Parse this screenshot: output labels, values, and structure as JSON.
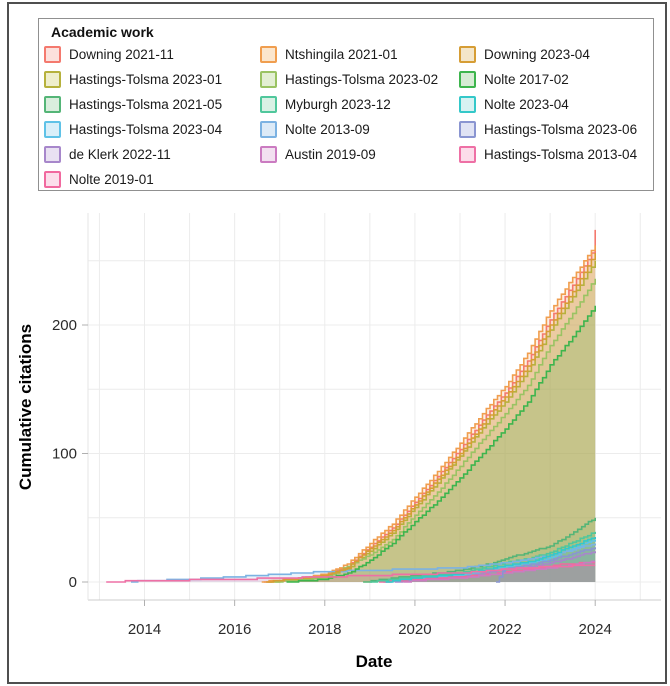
{
  "figure": {
    "background": "#ffffff",
    "border_color": "#4f4f4f"
  },
  "legend": {
    "title": "Academic work"
  },
  "chart_data": {
    "type": "area",
    "title": "",
    "xlabel": "Date",
    "ylabel": "Cumulative citations",
    "x_tick_labels": [
      "2014",
      "2016",
      "2018",
      "2020",
      "2022",
      "2024"
    ],
    "x_tick_years": [
      2014,
      2016,
      2018,
      2020,
      2022,
      2024
    ],
    "y_tick_values": [
      0,
      100,
      200
    ],
    "x_gridline_years": [
      2013,
      2014,
      2015,
      2016,
      2017,
      2018,
      2019,
      2020,
      2021,
      2022,
      2023,
      2024,
      2025
    ],
    "y_gridline_values": [
      0,
      50,
      100,
      150,
      200,
      250
    ],
    "xlim": [
      2012.75,
      2025.45
    ],
    "ylim": [
      -12,
      287
    ],
    "grid": "on",
    "gridline_color": "#ececec",
    "axis_line_color": "#cccccc",
    "tick_color": "#b0b0b0",
    "legend_position": "top",
    "series": [
      {
        "name": "Downing 2021-11",
        "color": "#f4796e",
        "fill": "#fce1dd",
        "legend_column": 0,
        "points": [
          [
            2016.65,
            0
          ],
          [
            2017.5,
            3
          ],
          [
            2018,
            5
          ],
          [
            2018.5,
            12
          ],
          [
            2019,
            27
          ],
          [
            2019.5,
            42
          ],
          [
            2020,
            62
          ],
          [
            2020.5,
            82
          ],
          [
            2021,
            103
          ],
          [
            2021.5,
            126
          ],
          [
            2022,
            147
          ],
          [
            2022.5,
            172
          ],
          [
            2023,
            204
          ],
          [
            2023.5,
            231
          ],
          [
            2023.92,
            256
          ],
          [
            2024,
            274
          ]
        ]
      },
      {
        "name": "Hastings-Tolsma 2023-01",
        "color": "#b6b13c",
        "fill": "#efeecc",
        "legend_column": 0,
        "points": [
          [
            2016.75,
            0
          ],
          [
            2017.5,
            2
          ],
          [
            2018,
            4
          ],
          [
            2018.5,
            10
          ],
          [
            2019,
            24
          ],
          [
            2019.5,
            38
          ],
          [
            2020,
            58
          ],
          [
            2020.5,
            77
          ],
          [
            2021,
            98
          ],
          [
            2021.5,
            120
          ],
          [
            2022,
            140
          ],
          [
            2022.5,
            164
          ],
          [
            2023,
            196
          ],
          [
            2023.5,
            222
          ],
          [
            2024,
            250
          ]
        ]
      },
      {
        "name": "Hastings-Tolsma 2021-05",
        "color": "#54b577",
        "fill": "#d9eedd",
        "legend_column": 0,
        "points": [
          [
            2018.85,
            0
          ],
          [
            2019.3,
            2
          ],
          [
            2020,
            5
          ],
          [
            2020.8,
            8
          ],
          [
            2021,
            9
          ],
          [
            2021.75,
            15
          ],
          [
            2022,
            18
          ],
          [
            2022.6,
            24
          ],
          [
            2023,
            28
          ],
          [
            2023.35,
            35
          ],
          [
            2023.7,
            43
          ],
          [
            2024,
            50
          ]
        ]
      },
      {
        "name": "Hastings-Tolsma 2023-04",
        "color": "#5fc2e7",
        "fill": "#d9eff9",
        "legend_column": 0,
        "points": [
          [
            2019.3,
            0
          ],
          [
            2020,
            3
          ],
          [
            2021,
            5
          ],
          [
            2021.75,
            10
          ],
          [
            2022,
            12
          ],
          [
            2022.6,
            15
          ],
          [
            2023,
            19
          ],
          [
            2023.5,
            26
          ],
          [
            2024,
            33
          ]
        ]
      },
      {
        "name": "de Klerk 2022-11",
        "color": "#a787cb",
        "fill": "#e9e1f2",
        "legend_column": 0,
        "points": [
          [
            2019.55,
            0
          ],
          [
            2020,
            2
          ],
          [
            2021,
            4
          ],
          [
            2021.75,
            8
          ],
          [
            2022,
            10
          ],
          [
            2022.6,
            12
          ],
          [
            2023,
            15
          ],
          [
            2023.5,
            19
          ],
          [
            2024,
            24
          ]
        ]
      },
      {
        "name": "Nolte 2019-01",
        "color": "#f1699f",
        "fill": "#fcdeeb",
        "legend_column": 0,
        "points": [
          [
            2019.2,
            0
          ],
          [
            2020,
            2
          ],
          [
            2021,
            4
          ],
          [
            2021.75,
            6
          ],
          [
            2022,
            8
          ],
          [
            2023,
            12
          ],
          [
            2023.3,
            14
          ],
          [
            2024,
            15
          ]
        ]
      },
      {
        "name": "Ntshingila 2021-01",
        "color": "#f09e4f",
        "fill": "#fbe6cd",
        "legend_column": 1,
        "points": [
          [
            2016.6,
            0
          ],
          [
            2017.5,
            3
          ],
          [
            2018,
            6
          ],
          [
            2018.5,
            14
          ],
          [
            2019,
            30
          ],
          [
            2019.5,
            45
          ],
          [
            2020,
            66
          ],
          [
            2020.5,
            86
          ],
          [
            2021,
            108
          ],
          [
            2021.5,
            131
          ],
          [
            2022,
            152
          ],
          [
            2022.5,
            178
          ],
          [
            2023,
            211
          ],
          [
            2023.5,
            237
          ],
          [
            2024,
            262
          ]
        ]
      },
      {
        "name": "Hastings-Tolsma 2023-02",
        "color": "#9ac363",
        "fill": "#e3efd3",
        "legend_column": 1,
        "points": [
          [
            2016.9,
            0
          ],
          [
            2017.5,
            2
          ],
          [
            2018,
            3
          ],
          [
            2019,
            21
          ],
          [
            2019.5,
            33
          ],
          [
            2020,
            52
          ],
          [
            2020.5,
            70
          ],
          [
            2021,
            90
          ],
          [
            2021.5,
            111
          ],
          [
            2022,
            131
          ],
          [
            2022.5,
            153
          ],
          [
            2023,
            184
          ],
          [
            2023.5,
            209
          ],
          [
            2024,
            236
          ]
        ]
      },
      {
        "name": "Myburgh 2023-12",
        "color": "#50c79c",
        "fill": "#d9f1e5",
        "legend_column": 1,
        "points": [
          [
            2019.0,
            0
          ],
          [
            2019.5,
            2
          ],
          [
            2020,
            4
          ],
          [
            2021,
            7
          ],
          [
            2021.75,
            13
          ],
          [
            2022,
            15
          ],
          [
            2022.6,
            19
          ],
          [
            2023,
            23
          ],
          [
            2023.5,
            31
          ],
          [
            2024,
            39
          ]
        ]
      },
      {
        "name": "Nolte 2013-09",
        "color": "#7cb2e2",
        "fill": "#dceaf7",
        "legend_column": 1,
        "points": [
          [
            2013.7,
            0
          ],
          [
            2014,
            1
          ],
          [
            2015,
            2
          ],
          [
            2016,
            4
          ],
          [
            2017,
            6
          ],
          [
            2018,
            8
          ],
          [
            2019,
            9
          ],
          [
            2020,
            10
          ],
          [
            2021,
            11
          ],
          [
            2021.75,
            14
          ],
          [
            2022,
            15
          ],
          [
            2022.6,
            18
          ],
          [
            2023,
            21
          ],
          [
            2023.5,
            25
          ],
          [
            2024,
            30
          ]
        ]
      },
      {
        "name": "Austin 2019-09",
        "color": "#cb7bc1",
        "fill": "#f2e0f0",
        "legend_column": 1,
        "points": [
          [
            2019.75,
            0
          ],
          [
            2020,
            1
          ],
          [
            2021,
            3
          ],
          [
            2021.75,
            6
          ],
          [
            2022,
            7
          ],
          [
            2023,
            11
          ],
          [
            2023.5,
            13
          ],
          [
            2024,
            16
          ]
        ]
      },
      {
        "name": "Downing 2023-04",
        "color": "#d69d35",
        "fill": "#f4e6c9",
        "legend_column": 2,
        "points": [
          [
            2016.7,
            0
          ],
          [
            2017.5,
            3
          ],
          [
            2018,
            5
          ],
          [
            2018.5,
            11
          ],
          [
            2019,
            26
          ],
          [
            2019.5,
            40
          ],
          [
            2020,
            60
          ],
          [
            2020.5,
            80
          ],
          [
            2021,
            100
          ],
          [
            2021.5,
            123
          ],
          [
            2022,
            144
          ],
          [
            2022.5,
            168
          ],
          [
            2023,
            200
          ],
          [
            2023.5,
            226
          ],
          [
            2024,
            256
          ]
        ]
      },
      {
        "name": "Nolte 2017-02",
        "color": "#3db54d",
        "fill": "#d6ecd4",
        "legend_column": 2,
        "points": [
          [
            2017.15,
            0
          ],
          [
            2017.6,
            1
          ],
          [
            2018,
            2
          ],
          [
            2018.6,
            8
          ],
          [
            2019,
            17
          ],
          [
            2019.5,
            30
          ],
          [
            2020,
            47
          ],
          [
            2020.5,
            63
          ],
          [
            2021,
            81
          ],
          [
            2021.5,
            100
          ],
          [
            2022,
            119
          ],
          [
            2022.5,
            140
          ],
          [
            2023,
            169
          ],
          [
            2023.5,
            191
          ],
          [
            2024,
            215
          ]
        ]
      },
      {
        "name": "Nolte 2023-04",
        "color": "#34c8c9",
        "fill": "#d7f2f2",
        "legend_column": 2,
        "points": [
          [
            2019.35,
            0
          ],
          [
            2020,
            3
          ],
          [
            2021,
            6
          ],
          [
            2021.75,
            11
          ],
          [
            2022,
            13
          ],
          [
            2022.6,
            16
          ],
          [
            2023,
            21
          ],
          [
            2023.5,
            28
          ],
          [
            2024,
            35
          ]
        ]
      },
      {
        "name": "Hastings-Tolsma 2023-06",
        "color": "#8a95d1",
        "fill": "#e0e3f4",
        "legend_column": 2,
        "points": [
          [
            2021.8,
            0
          ],
          [
            2021.95,
            8
          ],
          [
            2022,
            10
          ],
          [
            2022.5,
            13
          ],
          [
            2023,
            17
          ],
          [
            2023.5,
            22
          ],
          [
            2024,
            27
          ]
        ]
      },
      {
        "name": "Hastings-Tolsma 2013-04",
        "color": "#ee70a5",
        "fill": "#fcdcea",
        "legend_column": 2,
        "points": [
          [
            2013.15,
            0
          ],
          [
            2014,
            1
          ],
          [
            2016,
            2
          ],
          [
            2017,
            3
          ],
          [
            2018,
            4
          ],
          [
            2019,
            5
          ],
          [
            2020,
            6
          ],
          [
            2021,
            7
          ],
          [
            2021.75,
            9
          ],
          [
            2022,
            10
          ],
          [
            2023,
            12
          ],
          [
            2024,
            13
          ]
        ]
      }
    ]
  }
}
